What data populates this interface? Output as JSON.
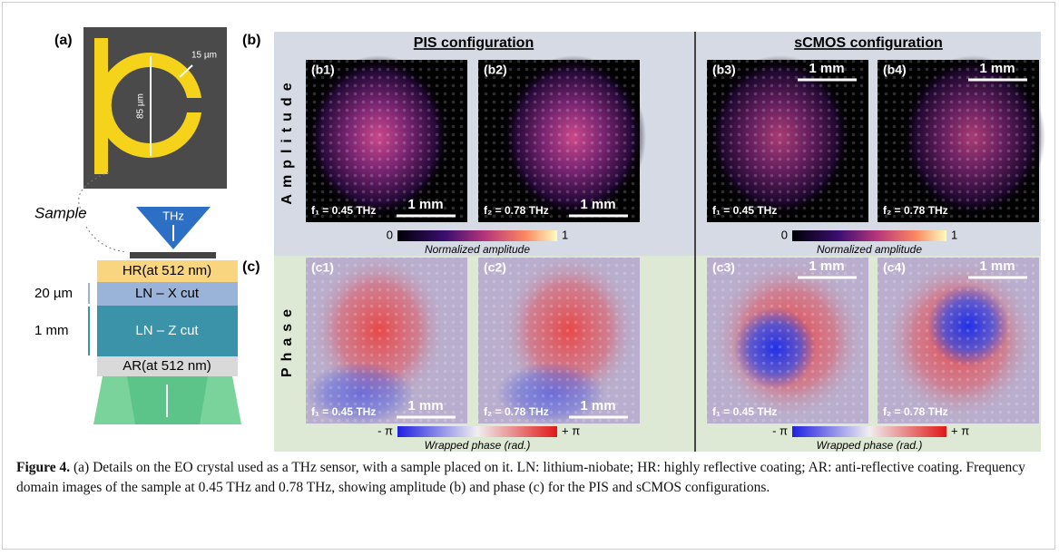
{
  "panel_a": {
    "label": "(a)",
    "ring_gap": "15 µm",
    "ring_diameter": "85 µm",
    "sample": "Sample",
    "source": "THz",
    "layers": [
      "HR(at 512 nm)",
      "LN – X cut",
      "LN – Z cut",
      "AR(at 512 nm)"
    ],
    "thickness_x": "20 µm",
    "thickness_z": "1 mm"
  },
  "panel_b": {
    "label": "(b)",
    "row_label": "Amplitude",
    "images": [
      {
        "label": "(b1)",
        "freq": "f₁ = 0.45 THz",
        "scale": "1 mm"
      },
      {
        "label": "(b2)",
        "freq": "f₂ = 0.78 THz",
        "scale": "1 mm"
      },
      {
        "label": "(b3)",
        "freq": "f₁ = 0.45 THz",
        "scale": "1 mm"
      },
      {
        "label": "(b4)",
        "freq": "f₂ = 0.78 THz",
        "scale": "1 mm"
      }
    ],
    "colorbars": [
      {
        "min": 0,
        "max": 1,
        "title": "Normalized amplitude"
      },
      {
        "min": 0,
        "max": 1,
        "title": "Normalized amplitude"
      }
    ]
  },
  "panel_c": {
    "label": "(c)",
    "row_label": "Phase",
    "images": [
      {
        "label": "(c1)",
        "freq": "f₁ = 0.45 THz",
        "scale": "1 mm"
      },
      {
        "label": "(c2)",
        "freq": "f₂ = 0.78 THz",
        "scale": "1 mm"
      },
      {
        "label": "(c3)",
        "freq": "f₁ = 0.45 THz",
        "scale": "1 mm"
      },
      {
        "label": "(c4)",
        "freq": "f₂ = 0.78 THz",
        "scale": "1 mm"
      }
    ],
    "colorbars": [
      {
        "min": "- π",
        "max": "+ π",
        "title": "Wrapped phase (rad.)"
      },
      {
        "min": "- π",
        "max": "+ π",
        "title": "Wrapped phase (rad.)"
      }
    ]
  },
  "configs": [
    "PIS configuration",
    "sCMOS configuration"
  ],
  "caption": {
    "label": "Figure 4.",
    "text": "(a) Details on the EO crystal used as a THz sensor, with a sample placed on it. LN: lithium-niobate; HR: highly reflective coating; AR: anti-reflective coating. Frequency domain images of the sample at 0.45 THz and 0.78 THz, showing amplitude (b) and phase (c) for the PIS and sCMOS configurations."
  }
}
